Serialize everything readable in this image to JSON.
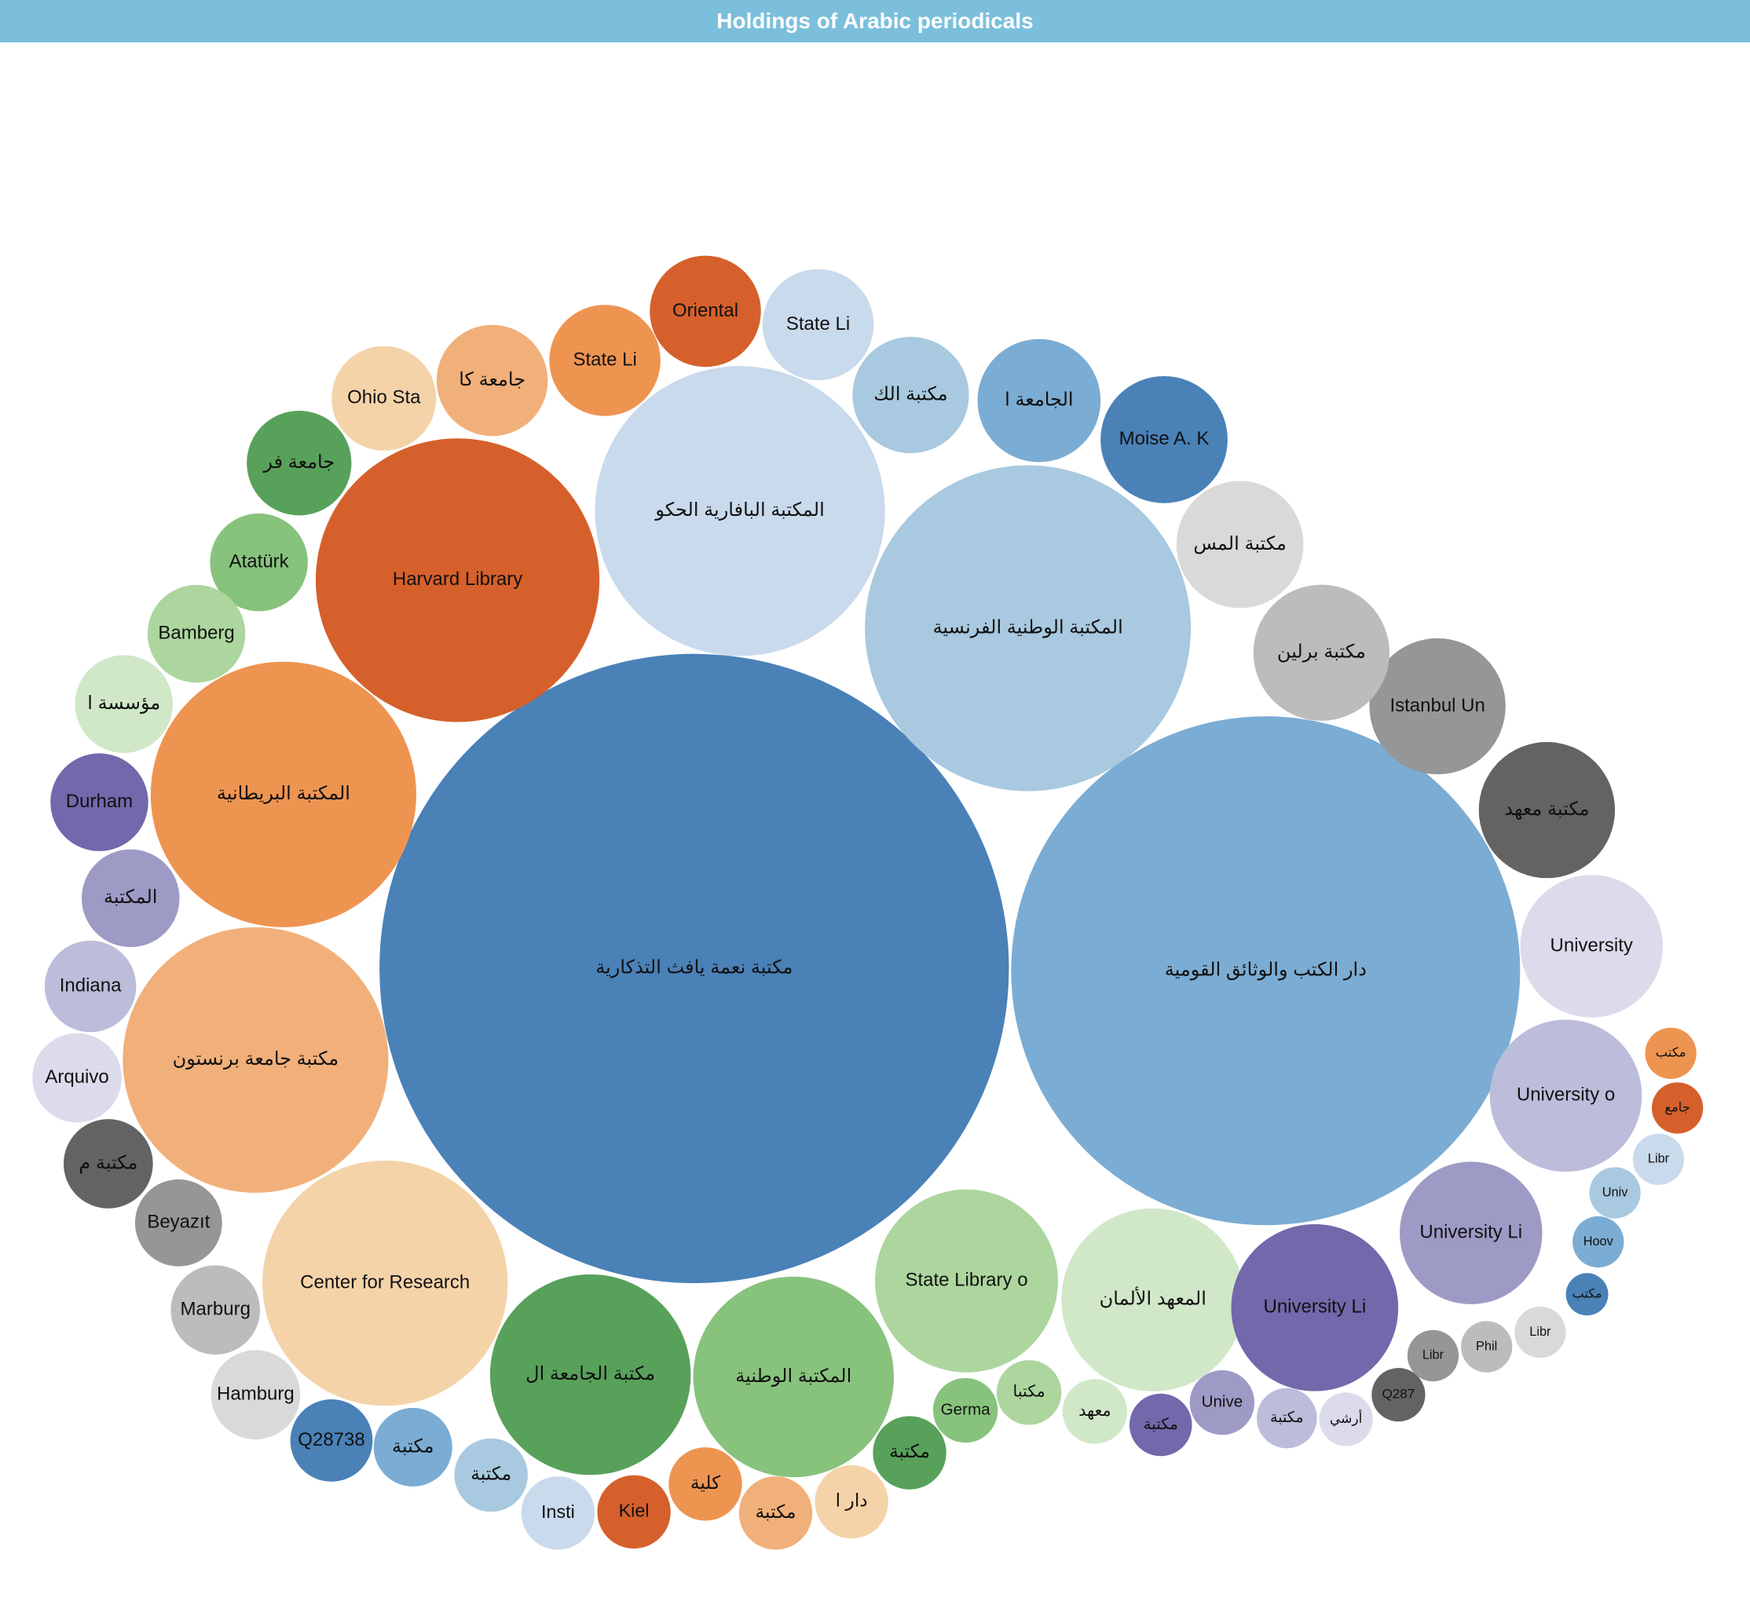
{
  "chart_data": {
    "type": "bubble",
    "title": "Holdings of Arabic periodicals",
    "categories": [
      "مكتبة نعمة يافث التذكارية",
      "دار الكتب والوثائق القومية",
      "المكتبة الوطنية الفرنسية",
      "المكتبة البافارية الحكو",
      "Harvard Library",
      "المكتبة البريطانية",
      "مكتبة جامعة برنستون",
      "Center for Research",
      "مكتبة الجامعة ال",
      "المكتبة الوطنية",
      "State Library o",
      "المعهد الألمان",
      "University Li",
      "University Li",
      "University o",
      "University",
      "مكتبة معهد",
      "Istanbul Un",
      "مكتبة برلين",
      "مكتبة المس",
      "Moise A. K",
      "الجامعة ا",
      "مكتبة الك",
      "State Li",
      "Oriental",
      "State Li",
      "جامعة كا",
      "Ohio Sta",
      "جامعة فر",
      "Atatürk",
      "Bamberg",
      "مؤسسة ا",
      "Durham",
      "المكتبة",
      "Indiana",
      "Arquivo",
      "مكتبة م",
      "Beyazıt",
      "Marburg",
      "Hamburg",
      "Q28738",
      "مكتبة",
      "مكتبة",
      "Insti",
      "Kiel",
      "كلية",
      "مكتبة",
      "دار ا",
      "مكتبة",
      "Germa",
      "مكتبا",
      "معهد",
      "مكتبة",
      "Unive",
      "مكتبة",
      "أرشي",
      "Q287",
      "Libr",
      "Phil",
      "Libr",
      "مكتب",
      "Hoov",
      "Univ",
      "Libr",
      "جامع",
      "مكتب"
    ],
    "values": [
      9940,
      6500,
      2665,
      2110,
      2020,
      1770,
      1770,
      1510,
      1010,
      1010,
      840,
      840,
      700,
      510,
      580,
      510,
      465,
      465,
      465,
      405,
      405,
      380,
      340,
      310,
      310,
      310,
      310,
      275,
      275,
      240,
      240,
      240,
      240,
      240,
      210,
      200,
      200,
      190,
      200,
      200,
      170,
      155,
      135,
      135,
      135,
      135,
      135,
      135,
      135,
      105,
      105,
      105,
      98,
      105,
      91,
      72,
      72,
      66,
      66,
      66,
      45,
      66,
      66,
      66,
      66,
      66
    ],
    "colors": [
      "#4a81b7",
      "#7bacd3",
      "#a8c9df",
      "#c9daec",
      "#d6602b",
      "#ee9451",
      "#f1b07a",
      "#f5d3a9",
      "#58a15a",
      "#87c37c",
      "#acd69e",
      "#d0e8c8",
      "#7268ab",
      "#9e9ac6",
      "#bcbcdb",
      "#dcdbec",
      "#636363",
      "#969696",
      "#bcbcbc",
      "#d9d9d9",
      "#4a81b7",
      "#7bacd3",
      "#a8c9df",
      "#c9daec",
      "#d6602b",
      "#ee9451",
      "#f1b07a",
      "#f5d3a9",
      "#58a15a",
      "#87c37c",
      "#acd69e",
      "#d0e8c8",
      "#7268ab",
      "#9e9ac6",
      "#bcbcdb",
      "#dcdbec",
      "#636363",
      "#969696",
      "#bcbcbc",
      "#d9d9d9",
      "#4a81b7",
      "#7bacd3",
      "#a8c9df",
      "#c9daec",
      "#d6602b",
      "#ee9451",
      "#f1b07a",
      "#f5d3a9",
      "#58a15a",
      "#87c37c",
      "#acd69e",
      "#d0e8c8",
      "#7268ab",
      "#9e9ac6",
      "#bcbcdb",
      "#dcdbec",
      "#636363",
      "#969696",
      "#bcbcbc",
      "#d9d9d9",
      "#4a81b7",
      "#7bacd3",
      "#a8c9df",
      "#c9daec",
      "#d6602b",
      "#ee9451"
    ]
  }
}
